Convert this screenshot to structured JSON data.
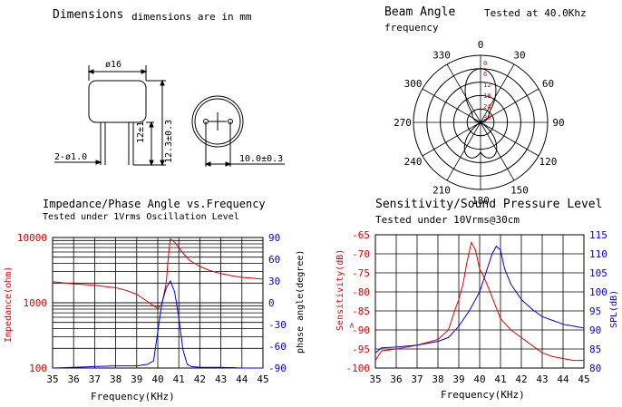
{
  "dimensions": {
    "title": "Dimensions",
    "note": "dimensions are in mm",
    "diameter_label": "ø16",
    "pin_label": "2-ø1.0",
    "height1_label": "12±1",
    "height2_label": "12.3±0.3",
    "pitch_label": "10.0±0.3"
  },
  "beam": {
    "title": "Beam Angle",
    "tested": "Tested at 40.0Khz",
    "frequency_label": "frequency",
    "angle_labels": [
      {
        "text": "0",
        "deg": 0
      },
      {
        "text": "30",
        "deg": 30
      },
      {
        "text": "60",
        "deg": 60
      },
      {
        "text": "90",
        "deg": 90
      },
      {
        "text": "120",
        "deg": 120
      },
      {
        "text": "150",
        "deg": 150
      },
      {
        "text": "180",
        "deg": 180
      },
      {
        "text": "210",
        "deg": 210
      },
      {
        "text": "240",
        "deg": 240
      },
      {
        "text": "270",
        "deg": 270
      },
      {
        "text": "300",
        "deg": 300
      },
      {
        "text": "330",
        "deg": 330
      }
    ],
    "ring_labels": [
      "0",
      "6",
      "12",
      "18",
      "24",
      "30"
    ]
  },
  "impedance": {
    "title": "Impedance/Phase Angle vs.Frequency",
    "subtitle": "Tested under 1Vrms Oscillation Level",
    "ylabel_left": "Impedance(ohm)",
    "ylabel_right": "phase angle(degree)",
    "xlabel": "Frequency(KHz)",
    "left_ticks": [
      "10000",
      "1000",
      "100"
    ],
    "right_ticks": [
      "90",
      "60",
      "30",
      "0",
      "-30",
      "-60",
      "-90"
    ],
    "x_ticks": [
      "35",
      "36",
      "37",
      "38",
      "39",
      "40",
      "41",
      "42",
      "43",
      "44",
      "45"
    ]
  },
  "sensitivity": {
    "title": "Sensitivity/Sound Pressure Level",
    "subtitle": "Tested under 10Vrms@30cm",
    "ylabel_left": "Sensitivity(dB)",
    "ylabel_left_sub": ">",
    "ylabel_right": "SPL(dB)",
    "xlabel": "Frequency(KHz)",
    "left_ticks": [
      "-65",
      "-70",
      "-75",
      "-80",
      "-85",
      "-90",
      "-95",
      "-100"
    ],
    "right_ticks": [
      "115",
      "110",
      "105",
      "100",
      "95",
      "90",
      "85",
      "80"
    ],
    "x_ticks": [
      "35",
      "36",
      "37",
      "38",
      "39",
      "40",
      "41",
      "42",
      "43",
      "44",
      "45"
    ]
  },
  "chart_data": [
    {
      "type": "line",
      "xlim": [
        35,
        45
      ],
      "ylim_left": [
        100,
        10000
      ],
      "left_scale": "log",
      "ylim_right": [
        -90,
        90
      ],
      "grid": true,
      "series": [
        {
          "axis": "left",
          "color": "#e00000",
          "x": [
            35,
            36,
            37,
            38,
            38.5,
            39.0,
            39.5,
            39.8,
            40.0,
            40.2,
            40.4,
            40.5,
            40.6,
            40.7,
            40.8,
            41.0,
            41.2,
            41.5,
            42.0,
            42.5,
            43.0,
            43.5,
            44.0,
            44.5,
            45
          ],
          "y": [
            2100,
            1950,
            1850,
            1700,
            1550,
            1350,
            1050,
            900,
            820,
            950,
            2000,
            5000,
            9500,
            9000,
            8500,
            7000,
            5800,
            4500,
            3600,
            3100,
            2800,
            2600,
            2450,
            2380,
            2300
          ]
        },
        {
          "axis": "right",
          "color": "#0000e0",
          "x": [
            35,
            36,
            37,
            38,
            38.5,
            39.0,
            39.5,
            39.8,
            40.0,
            40.2,
            40.4,
            40.6,
            40.8,
            41.0,
            41.2,
            41.4,
            41.6,
            42.0,
            42.5,
            43,
            44,
            45
          ],
          "y": [
            -90,
            -89,
            -88,
            -87,
            -87,
            -87,
            -85,
            -80,
            -40,
            0,
            20,
            30,
            15,
            -20,
            -65,
            -85,
            -88,
            -89,
            -89,
            -89,
            -90,
            -90
          ]
        }
      ]
    },
    {
      "type": "line",
      "xlim": [
        35,
        45
      ],
      "ylim_left": [
        -100,
        -65
      ],
      "ylim_right": [
        80,
        115
      ],
      "grid": true,
      "series": [
        {
          "axis": "left",
          "color": "#e00000",
          "x": [
            35.0,
            35.3,
            36.0,
            37.0,
            38.0,
            38.5,
            38.8,
            39.0,
            39.2,
            39.4,
            39.6,
            39.8,
            40.0,
            40.2,
            40.5,
            41.0,
            41.5,
            42.0,
            42.5,
            43.0,
            43.5,
            44.0,
            44.5,
            45.0
          ],
          "y": [
            -98,
            -95.5,
            -95,
            -94,
            -92.5,
            -90,
            -85,
            -82,
            -78,
            -72,
            -67,
            -69,
            -74,
            -76,
            -80,
            -87,
            -90,
            -92,
            -94,
            -96,
            -97,
            -97.5,
            -98,
            -98
          ]
        },
        {
          "axis": "right",
          "color": "#0000e0",
          "x": [
            35.0,
            35.3,
            36.0,
            37.0,
            38.0,
            38.5,
            39.0,
            39.5,
            40.0,
            40.3,
            40.6,
            40.8,
            41.0,
            41.2,
            41.5,
            42.0,
            42.5,
            43.0,
            43.5,
            44.0,
            44.5,
            45.0
          ],
          "y": [
            84,
            85.3,
            85.5,
            86,
            87,
            88,
            91,
            95,
            100,
            105,
            110,
            112,
            111,
            106,
            102,
            98,
            95.5,
            93.5,
            92.5,
            91.5,
            91,
            90.5
          ]
        }
      ]
    }
  ]
}
